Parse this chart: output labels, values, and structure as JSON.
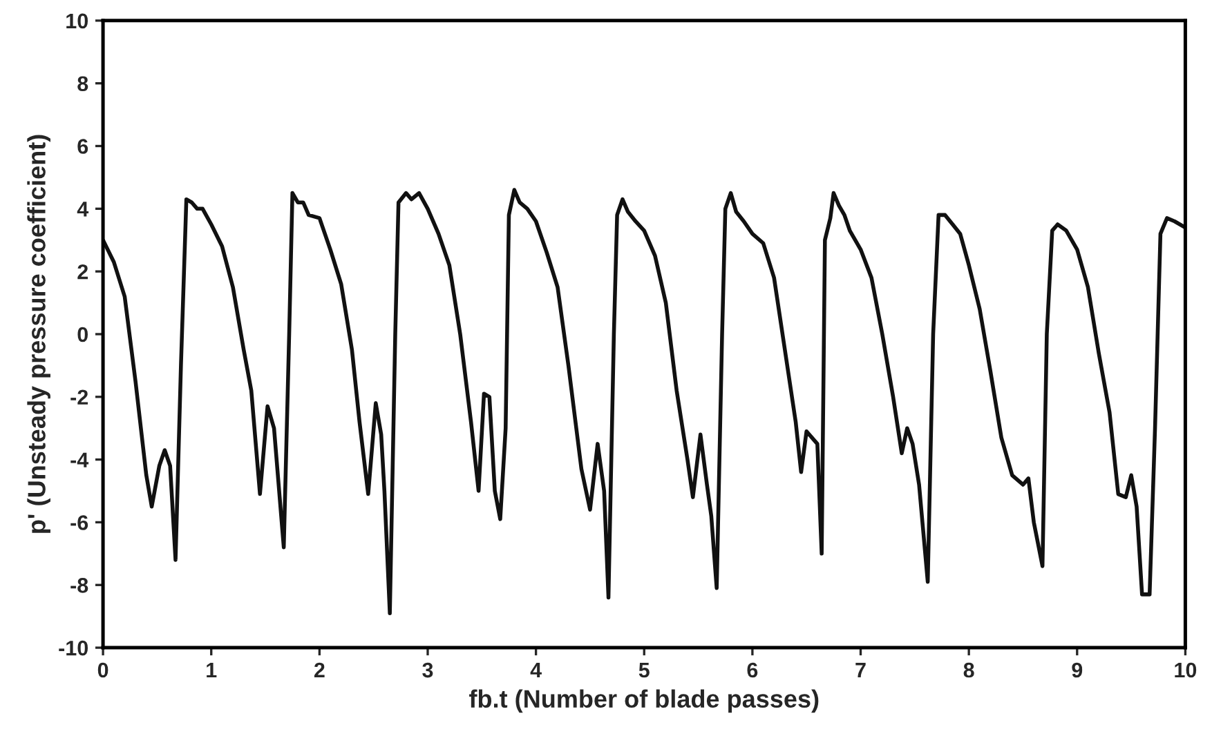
{
  "chart_data": {
    "type": "line",
    "xlabel": "fb.t (Number of blade passes)",
    "ylabel": "p' (Unsteady pressure coefficient)",
    "xlim": [
      0,
      10
    ],
    "ylim": [
      -10,
      10
    ],
    "xticks": [
      0,
      1,
      2,
      3,
      4,
      5,
      6,
      7,
      8,
      9,
      10
    ],
    "yticks": [
      -10,
      -8,
      -6,
      -4,
      -2,
      0,
      2,
      4,
      6,
      8,
      10
    ],
    "grid": false,
    "legend": false,
    "series": [
      {
        "color": "#111111",
        "x": [
          0,
          0.1,
          0.2,
          0.3,
          0.4,
          0.45,
          0.52,
          0.57,
          0.62,
          0.67,
          0.72,
          0.77,
          0.82,
          0.87,
          0.92,
          1.0,
          1.1,
          1.2,
          1.3,
          1.37,
          1.45,
          1.52,
          1.58,
          1.67,
          1.72,
          1.75,
          1.8,
          1.85,
          1.9,
          2.0,
          2.1,
          2.2,
          2.3,
          2.37,
          2.45,
          2.52,
          2.57,
          2.6,
          2.65,
          2.7,
          2.73,
          2.8,
          2.85,
          2.92,
          3.0,
          3.1,
          3.2,
          3.3,
          3.4,
          3.47,
          3.52,
          3.57,
          3.62,
          3.67,
          3.72,
          3.75,
          3.8,
          3.85,
          3.92,
          4.0,
          4.1,
          4.2,
          4.3,
          4.42,
          4.5,
          4.57,
          4.63,
          4.67,
          4.72,
          4.75,
          4.8,
          4.85,
          4.92,
          5.0,
          5.1,
          5.2,
          5.3,
          5.4,
          5.45,
          5.52,
          5.58,
          5.62,
          5.67,
          5.72,
          5.75,
          5.8,
          5.85,
          5.92,
          6.0,
          6.1,
          6.2,
          6.3,
          6.4,
          6.45,
          6.5,
          6.55,
          6.6,
          6.64,
          6.67,
          6.72,
          6.75,
          6.8,
          6.85,
          6.9,
          7.0,
          7.1,
          7.2,
          7.3,
          7.38,
          7.43,
          7.48,
          7.54,
          7.62,
          7.67,
          7.72,
          7.78,
          7.85,
          7.92,
          8.0,
          8.1,
          8.2,
          8.3,
          8.4,
          8.5,
          8.55,
          8.6,
          8.68,
          8.72,
          8.77,
          8.82,
          8.9,
          9.0,
          9.1,
          9.2,
          9.3,
          9.38,
          9.45,
          9.5,
          9.55,
          9.6,
          9.67,
          9.72,
          9.77,
          9.83,
          9.9,
          10
        ],
        "values": [
          3.0,
          2.3,
          1.2,
          -1.5,
          -4.5,
          -5.5,
          -4.2,
          -3.7,
          -4.2,
          -7.2,
          -1,
          4.3,
          4.2,
          4.0,
          4.0,
          3.5,
          2.8,
          1.5,
          -0.5,
          -1.8,
          -5.1,
          -2.3,
          -3.0,
          -6.8,
          0,
          4.5,
          4.2,
          4.2,
          3.8,
          3.7,
          2.7,
          1.6,
          -0.5,
          -2.8,
          -5.1,
          -2.2,
          -3.2,
          -5.0,
          -8.9,
          0,
          4.2,
          4.5,
          4.3,
          4.5,
          4.0,
          3.2,
          2.2,
          0,
          -2.8,
          -5.0,
          -1.9,
          -2.0,
          -5.0,
          -5.9,
          -3,
          3.8,
          4.6,
          4.2,
          4.0,
          3.6,
          2.6,
          1.5,
          -1.0,
          -4.3,
          -5.6,
          -3.5,
          -5,
          -8.4,
          0,
          3.8,
          4.3,
          3.9,
          3.6,
          3.3,
          2.5,
          1.0,
          -1.8,
          -4.0,
          -5.2,
          -3.2,
          -4.8,
          -5.8,
          -8.1,
          0,
          4.0,
          4.5,
          3.9,
          3.6,
          3.2,
          2.9,
          1.8,
          -0.5,
          -2.8,
          -4.4,
          -3.1,
          -3.3,
          -3.5,
          -7.0,
          3.0,
          3.7,
          4.5,
          4.1,
          3.8,
          3.3,
          2.7,
          1.8,
          0,
          -2.0,
          -3.8,
          -3.0,
          -3.5,
          -4.8,
          -7.9,
          0,
          3.8,
          3.8,
          3.5,
          3.2,
          2.2,
          0.8,
          -1.2,
          -3.3,
          -4.5,
          -4.8,
          -4.6,
          -6.0,
          -7.4,
          0,
          3.3,
          3.5,
          3.3,
          2.7,
          1.5,
          -0.6,
          -2.5,
          -5.1,
          -5.2,
          -4.5,
          -5.5,
          -8.3,
          -8.3,
          -3,
          3.2,
          3.7,
          3.6,
          3.4
        ]
      }
    ]
  }
}
